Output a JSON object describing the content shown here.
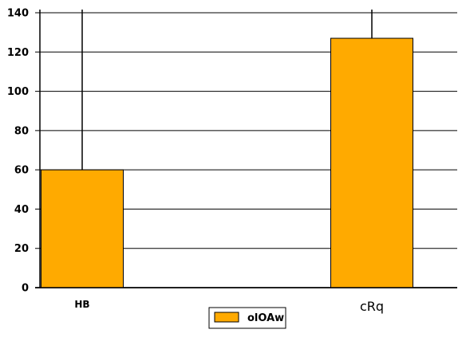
{
  "chart_data": {
    "type": "bar",
    "categories": [
      "HB",
      "cRq"
    ],
    "series": [
      {
        "name": "olOAw",
        "values": [
          60,
          127
        ],
        "color": "#FFAA00"
      }
    ],
    "title": "",
    "xlabel": "",
    "ylabel": "",
    "ylim": [
      0,
      140
    ],
    "yticks": [
      "0",
      "20",
      "40",
      "60",
      "80",
      "100",
      "120",
      "140"
    ],
    "grid": true,
    "legend_position": "bottom"
  }
}
